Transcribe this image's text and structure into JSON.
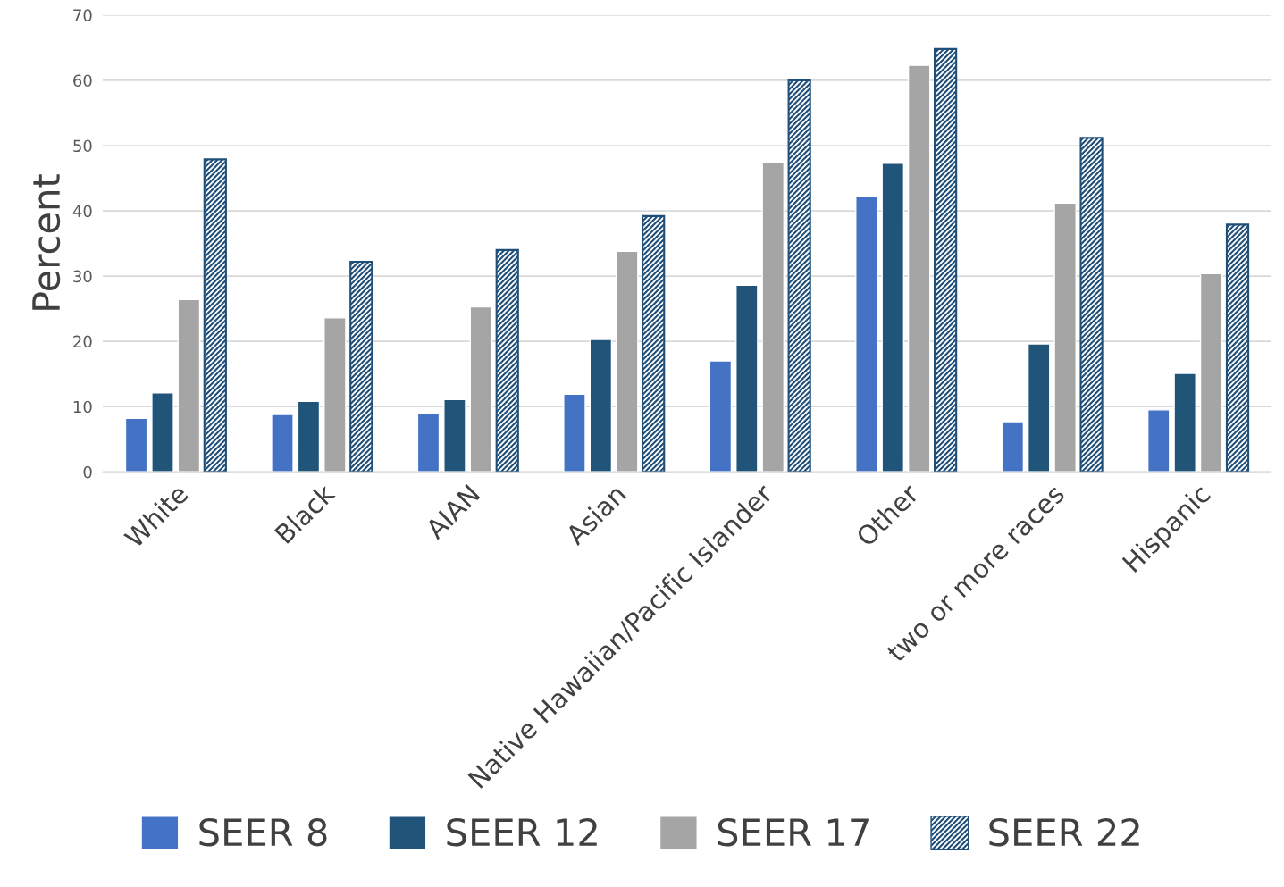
{
  "chart_data": {
    "type": "bar",
    "ylabel": "Percent",
    "categories": [
      "White",
      "Black",
      "AIAN",
      "Asian",
      "Native Hawaiian/Pacific Islander",
      "Other",
      "two or more races",
      "Hispanic"
    ],
    "series": [
      {
        "name": "SEER 8",
        "color": "#4472c4",
        "values": [
          8.2,
          8.8,
          8.9,
          11.9,
          17.0,
          42.3,
          7.7,
          9.5
        ]
      },
      {
        "name": "SEER 12",
        "color": "#215479",
        "values": [
          12.1,
          10.8,
          11.1,
          20.3,
          28.6,
          47.3,
          19.6,
          15.1
        ]
      },
      {
        "name": "SEER 17",
        "color": "#a5a5a5",
        "values": [
          26.4,
          23.6,
          25.3,
          33.8,
          47.5,
          62.3,
          41.2,
          30.4
        ]
      },
      {
        "name": "SEER 22",
        "color": "#1f4e79",
        "values": [
          47.9,
          32.2,
          34.0,
          39.2,
          60.0,
          64.8,
          51.2,
          37.9
        ]
      }
    ],
    "ylim": [
      0,
      70
    ],
    "yticks": [
      0,
      10,
      20,
      30,
      40,
      50,
      60,
      70
    ],
    "grid": "y",
    "legend": "bottom"
  }
}
